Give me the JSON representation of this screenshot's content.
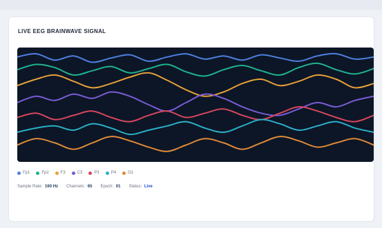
{
  "card": {
    "title": "LIVE EEG BRAINWAVE SIGNAL"
  },
  "chart_data": {
    "type": "line",
    "title": "",
    "xlabel": "",
    "ylabel": "",
    "grid": false,
    "legend_position": "bottom-left",
    "series": [
      {
        "name": "Fp1",
        "color": "#4f7fe0",
        "values": [
          0.05,
          0.02,
          0.08,
          0.04,
          0.1,
          0.06,
          0.03,
          0.09,
          0.05,
          0.02,
          0.07,
          0.04,
          0.08,
          0.03,
          0.06,
          0.09,
          0.04,
          0.02,
          0.07,
          0.05
        ]
      },
      {
        "name": "Fp2",
        "color": "#1fb38e",
        "values": [
          0.17,
          0.12,
          0.15,
          0.22,
          0.18,
          0.14,
          0.2,
          0.16,
          0.12,
          0.19,
          0.23,
          0.17,
          0.13,
          0.18,
          0.22,
          0.15,
          0.11,
          0.17,
          0.21,
          0.16
        ]
      },
      {
        "name": "F3",
        "color": "#e8a13a",
        "values": [
          0.32,
          0.26,
          0.22,
          0.28,
          0.34,
          0.3,
          0.24,
          0.2,
          0.27,
          0.36,
          0.42,
          0.38,
          0.3,
          0.26,
          0.32,
          0.28,
          0.22,
          0.26,
          0.34,
          0.3
        ]
      },
      {
        "name": "C3",
        "color": "#7a5cd6",
        "values": [
          0.48,
          0.42,
          0.46,
          0.4,
          0.44,
          0.38,
          0.42,
          0.5,
          0.56,
          0.48,
          0.4,
          0.44,
          0.52,
          0.58,
          0.6,
          0.54,
          0.48,
          0.52,
          0.46,
          0.42
        ]
      },
      {
        "name": "P3",
        "color": "#d9465f",
        "values": [
          0.62,
          0.58,
          0.64,
          0.6,
          0.56,
          0.62,
          0.66,
          0.6,
          0.56,
          0.62,
          0.58,
          0.54,
          0.6,
          0.64,
          0.58,
          0.52,
          0.56,
          0.62,
          0.66,
          0.6
        ]
      },
      {
        "name": "P4",
        "color": "#2bb0c9",
        "values": [
          0.76,
          0.72,
          0.7,
          0.74,
          0.68,
          0.72,
          0.78,
          0.74,
          0.7,
          0.66,
          0.72,
          0.76,
          0.7,
          0.64,
          0.68,
          0.74,
          0.7,
          0.66,
          0.72,
          0.76
        ]
      },
      {
        "name": "O1",
        "color": "#e08a3a",
        "values": [
          0.88,
          0.82,
          0.86,
          0.92,
          0.86,
          0.8,
          0.84,
          0.9,
          0.94,
          0.88,
          0.82,
          0.86,
          0.92,
          0.86,
          0.8,
          0.84,
          0.9,
          0.86,
          0.82,
          0.88
        ]
      }
    ]
  },
  "legend": {
    "items": [
      {
        "label": "Fp1",
        "color": "#4f7fe0"
      },
      {
        "label": "Fp2",
        "color": "#1fb38e"
      },
      {
        "label": "F3",
        "color": "#e8a13a"
      },
      {
        "label": "C3",
        "color": "#7a5cd6"
      },
      {
        "label": "P3",
        "color": "#d9465f"
      },
      {
        "label": "P4",
        "color": "#2bb0c9"
      },
      {
        "label": "O1",
        "color": "#e08a3a"
      }
    ]
  },
  "stats": {
    "sample_rate_label": "Sample Rate:",
    "sample_rate_value": "160 Hz",
    "channels_label": "Channels:",
    "channels_value": "65",
    "epoch_label": "Epoch:",
    "epoch_value": "01",
    "status_label": "Status:",
    "status_value": "Live"
  }
}
